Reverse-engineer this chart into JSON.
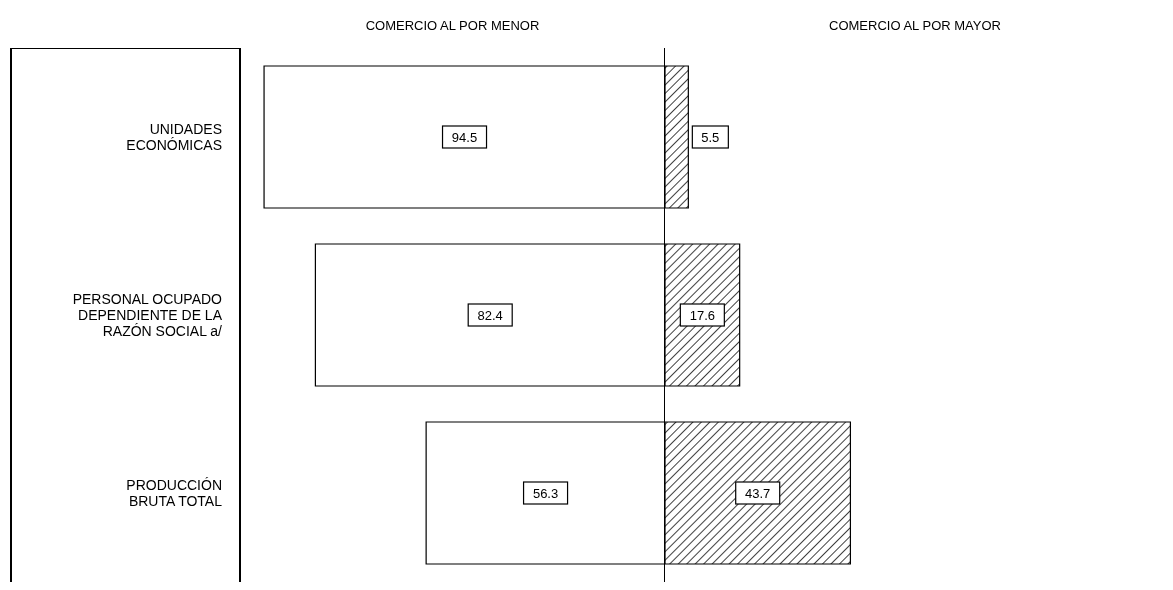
{
  "chart_data": [
    {
      "type": "bar",
      "orientation": "horizontal",
      "title": "COMERCIO AL POR MENOR",
      "categories": [
        "UNIDADES\nECONÓMICAS",
        "PERSONAL OCUPADO\nDEPENDIENTE DE LA\nRAZÓN SOCIAL a/",
        "PRODUCCIÓN\nBRUTA TOTAL"
      ],
      "series": [
        {
          "color": "#ffffff",
          "values": [
            94.5,
            82.4,
            56.3
          ]
        }
      ],
      "data_labels": true,
      "tick_labels": "y"
    },
    {
      "type": "bar",
      "orientation": "horizontal",
      "title": "COMERCIO AL POR MAYOR",
      "categories": [
        null,
        null,
        null
      ],
      "series": [
        {
          "color": "#000000",
          "values": [
            5.5,
            17.6,
            43.7
          ]
        }
      ],
      "data_labels": true,
      "tick_labels": false
    }
  ]
}
